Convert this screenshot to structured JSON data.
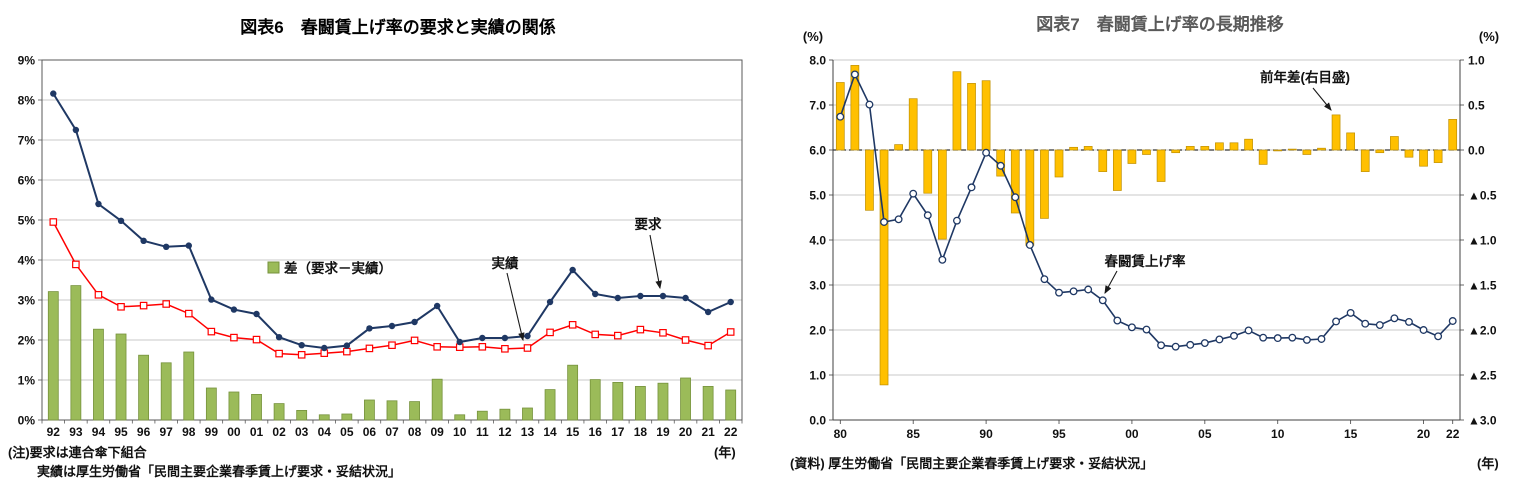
{
  "chart_data": [
    {
      "type": "bar+line",
      "title": "図表6　春闘賃上げ率の要求と実績の関係",
      "categories": [
        "92",
        "93",
        "94",
        "95",
        "96",
        "97",
        "98",
        "99",
        "00",
        "01",
        "02",
        "03",
        "04",
        "05",
        "06",
        "07",
        "08",
        "09",
        "10",
        "11",
        "12",
        "13",
        "14",
        "15",
        "16",
        "17",
        "18",
        "19",
        "20",
        "21",
        "22"
      ],
      "ylim": [
        0,
        9
      ],
      "yticks": [
        "0%",
        "1%",
        "2%",
        "3%",
        "4%",
        "5%",
        "6%",
        "7%",
        "8%",
        "9%"
      ],
      "grid": true,
      "xunit": "(年)",
      "series": [
        {
          "name": "要求",
          "type": "line",
          "marker": "filled-circle",
          "color": "#1F3864",
          "values": [
            8.16,
            7.25,
            5.4,
            4.98,
            4.48,
            4.33,
            4.36,
            3.01,
            2.76,
            2.65,
            2.07,
            1.87,
            1.8,
            1.86,
            2.29,
            2.35,
            2.45,
            2.85,
            1.95,
            2.05,
            2.05,
            2.1,
            2.95,
            3.75,
            3.15,
            3.05,
            3.1,
            3.1,
            3.05,
            2.7,
            2.95
          ]
        },
        {
          "name": "実績",
          "type": "line",
          "marker": "open-square",
          "color": "#FF0000",
          "values": [
            4.95,
            3.89,
            3.13,
            2.83,
            2.86,
            2.9,
            2.66,
            2.21,
            2.06,
            2.01,
            1.66,
            1.63,
            1.67,
            1.71,
            1.79,
            1.87,
            1.99,
            1.83,
            1.82,
            1.83,
            1.78,
            1.8,
            2.19,
            2.38,
            2.14,
            2.11,
            2.26,
            2.18,
            2.0,
            1.86,
            2.2
          ]
        },
        {
          "name": "差（要求－実績）",
          "type": "bar",
          "color": "#9BBB59",
          "border": "#76923C",
          "values": [
            3.21,
            3.36,
            2.27,
            2.15,
            1.62,
            1.43,
            1.7,
            0.8,
            0.7,
            0.64,
            0.41,
            0.24,
            0.13,
            0.15,
            0.5,
            0.48,
            0.46,
            1.02,
            0.13,
            0.22,
            0.27,
            0.3,
            0.76,
            1.37,
            1.01,
            0.94,
            0.84,
            0.92,
            1.05,
            0.84,
            0.75
          ]
        }
      ],
      "notes": [
        "(注)要求は連合傘下組合",
        "実績は厚生労働省「民間主要企業春季賃上げ要求・妥結状況」"
      ]
    },
    {
      "type": "bar+line-dual-axis",
      "title": "図表7　春闘賃上げ率の長期推移",
      "years": [
        1980,
        1981,
        1982,
        1983,
        1984,
        1985,
        1986,
        1987,
        1988,
        1989,
        1990,
        1991,
        1992,
        1993,
        1994,
        1995,
        1996,
        1997,
        1998,
        1999,
        2000,
        2001,
        2002,
        2003,
        2004,
        2005,
        2006,
        2007,
        2008,
        2009,
        2010,
        2011,
        2012,
        2013,
        2014,
        2015,
        2016,
        2017,
        2018,
        2019,
        2020,
        2021,
        2022
      ],
      "xtick_labels": [
        "80",
        "85",
        "90",
        "95",
        "00",
        "05",
        "10",
        "15",
        "20",
        "22"
      ],
      "xtick_indices": [
        0,
        5,
        10,
        15,
        20,
        25,
        30,
        35,
        40,
        42
      ],
      "xunit": "(年)",
      "left_axis": {
        "unit": "(%)",
        "lim": [
          0,
          8
        ],
        "ticks": [
          "0.0",
          "1.0",
          "2.0",
          "3.0",
          "4.0",
          "5.0",
          "6.0",
          "7.0",
          "8.0"
        ]
      },
      "right_axis": {
        "unit": "(%)",
        "lim": [
          -3,
          1
        ],
        "ticks": [
          "▲3.0",
          "▲2.5",
          "▲2.0",
          "▲1.5",
          "▲1.0",
          "▲0.5",
          "0.0",
          "0.5",
          "1.0"
        ]
      },
      "series": [
        {
          "name": "春闘賃上げ率",
          "type": "line",
          "axis": "left",
          "marker": "open-circle",
          "color": "#1F3864",
          "values": [
            6.74,
            7.68,
            7.01,
            4.4,
            4.46,
            5.03,
            4.55,
            3.56,
            4.43,
            5.17,
            5.94,
            5.65,
            4.95,
            3.89,
            3.13,
            2.83,
            2.86,
            2.9,
            2.66,
            2.21,
            2.06,
            2.01,
            1.66,
            1.63,
            1.67,
            1.71,
            1.79,
            1.87,
            1.99,
            1.83,
            1.82,
            1.83,
            1.78,
            1.8,
            2.19,
            2.38,
            2.14,
            2.11,
            2.26,
            2.18,
            2.0,
            1.86,
            2.2
          ]
        },
        {
          "name": "前年差(右目盛)",
          "type": "bar",
          "axis": "right",
          "color": "#FFC000",
          "border": "#BF8F00",
          "values": [
            0.75,
            0.94,
            -0.67,
            -2.61,
            0.06,
            0.57,
            -0.48,
            -0.99,
            0.87,
            0.74,
            0.77,
            -0.29,
            -0.7,
            -1.06,
            -0.76,
            -0.3,
            0.03,
            0.04,
            -0.24,
            -0.45,
            -0.15,
            -0.05,
            -0.35,
            -0.03,
            0.04,
            0.04,
            0.08,
            0.08,
            0.12,
            -0.16,
            -0.01,
            0.01,
            -0.05,
            0.02,
            0.39,
            0.19,
            -0.24,
            -0.03,
            0.15,
            -0.08,
            -0.18,
            -0.14,
            0.34
          ]
        }
      ],
      "note": "(資料) 厚生労働省「民間主要企業春季賃上げ要求・妥結状況」"
    }
  ]
}
